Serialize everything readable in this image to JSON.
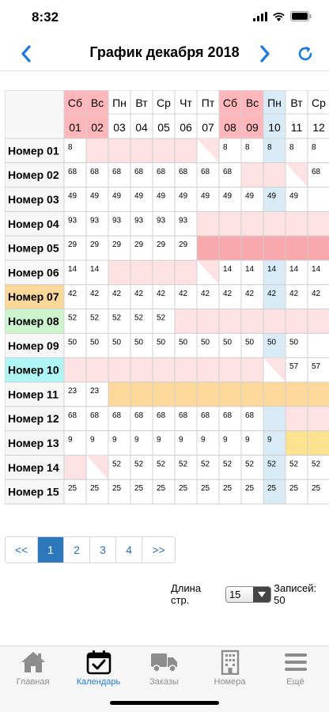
{
  "status": {
    "time": "8:32"
  },
  "nav": {
    "title": "График декабря 2018"
  },
  "colors": {
    "weekend": "#ffb7bb",
    "today": "#d8ebf7",
    "booked": "#fde2e4",
    "booked_dark": "#f9a8ae",
    "orange": "#fcd99a",
    "yellow": "#fde28f",
    "room_orange": "#fcd79a",
    "room_green": "#cdf5cd",
    "room_cyan": "#aef6f6",
    "accent": "#1c7be0"
  },
  "days": [
    {
      "dow": "Сб",
      "num": "01",
      "weekend": true
    },
    {
      "dow": "Вс",
      "num": "02",
      "weekend": true
    },
    {
      "dow": "Пн",
      "num": "03"
    },
    {
      "dow": "Вт",
      "num": "04"
    },
    {
      "dow": "Ср",
      "num": "05"
    },
    {
      "dow": "Чт",
      "num": "06"
    },
    {
      "dow": "Пт",
      "num": "07"
    },
    {
      "dow": "Сб",
      "num": "08",
      "weekend": true
    },
    {
      "dow": "Вс",
      "num": "09",
      "weekend": true
    },
    {
      "dow": "Пн",
      "num": "10",
      "today": true
    },
    {
      "dow": "Вт",
      "num": "11"
    },
    {
      "dow": "Ср",
      "num": "12"
    }
  ],
  "rooms": [
    {
      "name": "Номер 01",
      "cells": [
        "8",
        "b",
        "b",
        "b",
        "b",
        "b",
        "bs",
        "8",
        "8",
        "8t",
        "8",
        "8"
      ]
    },
    {
      "name": "Номер 02",
      "cells": [
        "68",
        "68",
        "68",
        "68",
        "68",
        "68",
        "68",
        "68",
        "b",
        "b",
        "bs",
        "68"
      ]
    },
    {
      "name": "Номер 03",
      "cells": [
        "49",
        "49",
        "49",
        "49",
        "49",
        "49",
        "49",
        "49",
        "49",
        "49t",
        "49",
        ""
      ]
    },
    {
      "name": "Номер 04",
      "cells": [
        "93",
        "93",
        "93",
        "93",
        "93",
        "93",
        "b",
        "b",
        "b",
        "b",
        "b",
        "b"
      ]
    },
    {
      "name": "Номер 05",
      "bold": true,
      "cells": [
        "29",
        "29",
        "29",
        "29",
        "29",
        "29",
        "d",
        "d",
        "d",
        "d",
        "d",
        "d"
      ]
    },
    {
      "name": "Номер 06",
      "cells": [
        "14",
        "14",
        "b",
        "b",
        "b",
        "b",
        "bs",
        "14",
        "14",
        "14t",
        "14",
        "14"
      ]
    },
    {
      "name": "Номер 07",
      "color": "orange",
      "cells": [
        "42",
        "42",
        "42",
        "42",
        "42",
        "42",
        "42",
        "42",
        "42",
        "42t",
        "42",
        "42"
      ]
    },
    {
      "name": "Номер 08",
      "color": "green",
      "cells": [
        "52",
        "52",
        "52",
        "52",
        "52",
        "b",
        "b",
        "b",
        "b",
        "b",
        "b",
        "b"
      ]
    },
    {
      "name": "Номер 09",
      "cells": [
        "50",
        "50",
        "50",
        "50",
        "50",
        "50",
        "50",
        "50",
        "50",
        "50t",
        "50",
        ""
      ]
    },
    {
      "name": "Номер 10",
      "color": "cyan",
      "cells": [
        "b",
        "b",
        "b",
        "b",
        "b",
        "b",
        "b",
        "b",
        "b",
        "bs",
        "57",
        "57"
      ]
    },
    {
      "name": "Номер 11",
      "cells": [
        "23",
        "23",
        "o",
        "o",
        "o",
        "o",
        "o",
        "o",
        "o",
        "o",
        "o",
        "o"
      ]
    },
    {
      "name": "Номер 12",
      "cells": [
        "68",
        "68",
        "68",
        "68",
        "68",
        "68",
        "68",
        "68",
        "68",
        "t",
        "b",
        "b"
      ]
    },
    {
      "name": "Номер 13",
      "cells": [
        "9",
        "9",
        "9",
        "9",
        "9",
        "9",
        "9",
        "9",
        "9",
        "9t",
        "y",
        "y"
      ]
    },
    {
      "name": "Номер 14",
      "cells": [
        "b",
        "bs",
        "52",
        "52",
        "52",
        "52",
        "52",
        "52",
        "52",
        "52t",
        "52",
        "52"
      ]
    },
    {
      "name": "Номер 15",
      "cells": [
        "25",
        "25",
        "25",
        "25",
        "25",
        "25",
        "25",
        "25",
        "25",
        "25t",
        "25",
        "25"
      ]
    }
  ],
  "pager": {
    "first": "<<",
    "pages": [
      "1",
      "2",
      "3",
      "4"
    ],
    "last": ">>",
    "active": "1"
  },
  "length": {
    "label": "Длина стр.",
    "value": "15",
    "records": "Записей: 50"
  },
  "tabs": [
    {
      "label": "Главная",
      "icon": "house-icon"
    },
    {
      "label": "Календарь",
      "icon": "calendar-check-icon",
      "active": true
    },
    {
      "label": "Заказы",
      "icon": "truck-icon"
    },
    {
      "label": "Номера",
      "icon": "hotel-building-icon"
    },
    {
      "label": "Ещё",
      "icon": "menu-icon"
    }
  ]
}
